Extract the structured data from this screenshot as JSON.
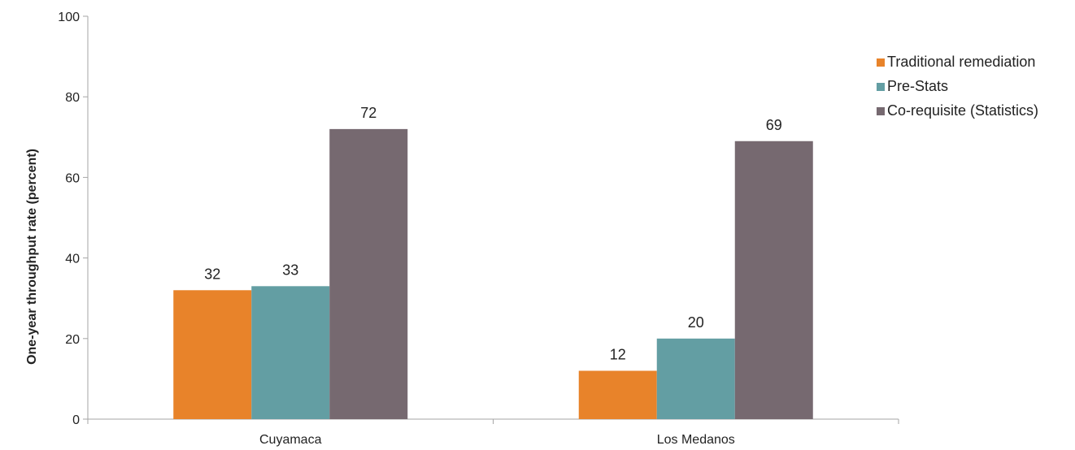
{
  "chart_data": {
    "type": "bar",
    "title": "",
    "xlabel": "",
    "ylabel": "One-year throughput rate (percent)",
    "categories": [
      "Cuyamaca",
      "Los Medanos"
    ],
    "series": [
      {
        "name": "Traditional remediation",
        "values": [
          32,
          12
        ],
        "labels": [
          "32",
          "12"
        ],
        "color": "#e8832a"
      },
      {
        "name": "Pre-Stats",
        "values": [
          33,
          20
        ],
        "labels": [
          "33",
          "20"
        ],
        "color": "#639ea3"
      },
      {
        "name": "Co-requisite (Statistics)",
        "values": [
          72,
          69
        ],
        "labels": [
          "72",
          "69"
        ],
        "color": "#766970"
      }
    ],
    "ylim": [
      0,
      100
    ],
    "yticks": [
      0,
      20,
      40,
      60,
      80,
      100
    ],
    "ytick_labels": [
      "0",
      "20",
      "40",
      "60",
      "80",
      "100"
    ],
    "grid": false,
    "legend_position": "right"
  }
}
